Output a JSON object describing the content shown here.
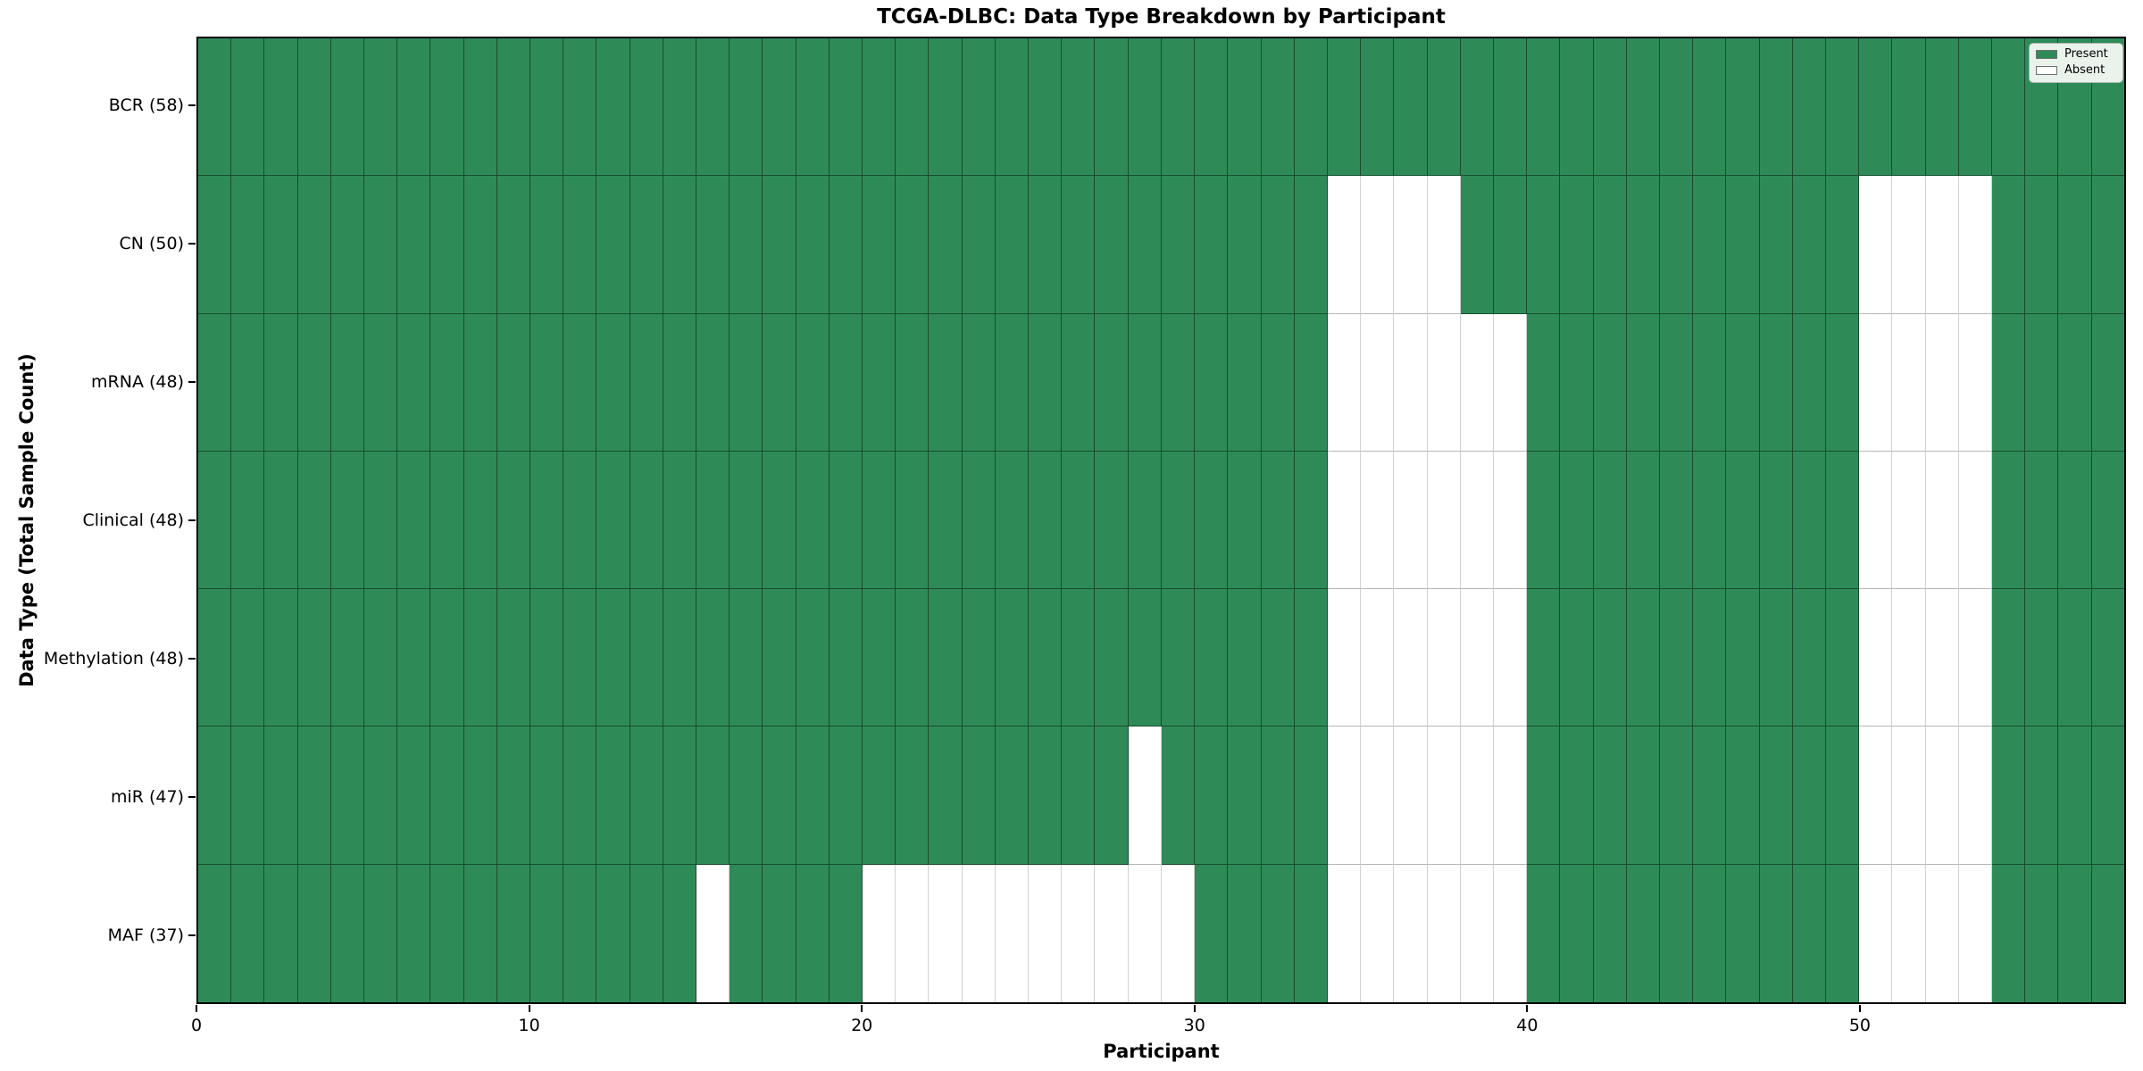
{
  "title": "TCGA-DLBC: Data Type Breakdown by Participant",
  "x_axis_label": "Participant",
  "y_axis_label": "Data Type (Total Sample Count)",
  "colors": {
    "present": "#2e8b57",
    "absent": "#ffffff",
    "spine": "#000000",
    "legend_background": "#eaf2ec"
  },
  "legend": {
    "position": "upper right",
    "items": [
      {
        "label": "Present",
        "swatch_color": "#2e8b57"
      },
      {
        "label": "Absent",
        "swatch_color": "#ffffff"
      }
    ]
  },
  "chart_data": {
    "type": "heatmap",
    "x_tick_values": [
      0,
      10,
      20,
      30,
      40,
      50
    ],
    "n_participants": 58,
    "x_range": [
      0,
      58
    ],
    "grid": "cell borders on",
    "rows": [
      {
        "label": "BCR (58)",
        "data_type": "BCR",
        "present_count": 58,
        "absent_participants": []
      },
      {
        "label": "CN (50)",
        "data_type": "CN",
        "present_count": 50,
        "absent_participants": [
          34,
          35,
          36,
          37,
          50,
          51,
          52,
          53
        ]
      },
      {
        "label": "mRNA (48)",
        "data_type": "mRNA",
        "present_count": 48,
        "absent_participants": [
          34,
          35,
          36,
          37,
          38,
          39,
          50,
          51,
          52,
          53
        ]
      },
      {
        "label": "Clinical (48)",
        "data_type": "Clinical",
        "present_count": 48,
        "absent_participants": [
          34,
          35,
          36,
          37,
          38,
          39,
          50,
          51,
          52,
          53
        ]
      },
      {
        "label": "Methylation (48)",
        "data_type": "Methylation",
        "present_count": 48,
        "absent_participants": [
          34,
          35,
          36,
          37,
          38,
          39,
          50,
          51,
          52,
          53
        ]
      },
      {
        "label": "miR (47)",
        "data_type": "miR",
        "present_count": 47,
        "absent_participants": [
          28,
          34,
          35,
          36,
          37,
          38,
          39,
          50,
          51,
          52,
          53
        ]
      },
      {
        "label": "MAF (37)",
        "data_type": "MAF",
        "present_count": 37,
        "absent_participants": [
          15,
          20,
          21,
          22,
          23,
          24,
          25,
          26,
          27,
          28,
          29,
          34,
          35,
          36,
          37,
          38,
          39,
          50,
          51,
          52,
          53
        ]
      }
    ]
  }
}
